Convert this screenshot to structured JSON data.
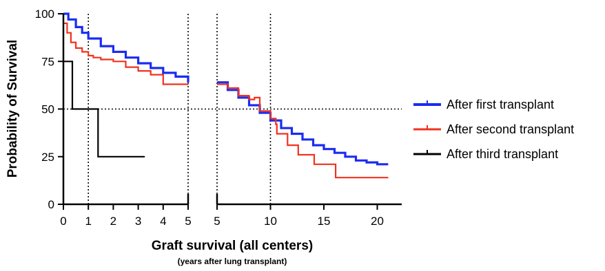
{
  "chart_data": {
    "type": "line",
    "chart_kind": "kaplan-meier step survival curves, split x-axis",
    "ylabel": "Probability of Survival",
    "xlabel": "Graft survival (all centers)",
    "xlabel_sub": "(years after lung transplant)",
    "ylim": [
      0,
      100
    ],
    "y_ticks": [
      0,
      25,
      50,
      75,
      100
    ],
    "x_segments": [
      {
        "xlim": [
          0,
          5
        ],
        "ticks": [
          0,
          1,
          2,
          3,
          4,
          5
        ]
      },
      {
        "xlim": [
          5,
          21
        ],
        "ticks": [
          5,
          10,
          15,
          20
        ]
      }
    ],
    "grid": false,
    "reference_lines": {
      "horizontal_y": [
        50
      ],
      "vertical_x": [
        1,
        5,
        10
      ]
    },
    "legend_position": "right",
    "series": [
      {
        "name": "After first transplant",
        "color": "#1a2cf0",
        "points": [
          [
            0,
            100
          ],
          [
            0.2,
            97
          ],
          [
            0.5,
            93
          ],
          [
            0.75,
            90
          ],
          [
            1,
            87
          ],
          [
            1.5,
            83
          ],
          [
            2,
            80
          ],
          [
            2.5,
            77
          ],
          [
            3,
            74
          ],
          [
            3.5,
            71.5
          ],
          [
            4,
            69
          ],
          [
            4.5,
            67
          ],
          [
            5,
            64
          ],
          [
            6,
            60
          ],
          [
            7,
            56
          ],
          [
            8,
            52
          ],
          [
            9,
            48
          ],
          [
            10,
            44
          ],
          [
            11,
            40
          ],
          [
            12,
            37
          ],
          [
            13,
            34
          ],
          [
            14,
            31
          ],
          [
            15,
            29
          ],
          [
            16,
            27
          ],
          [
            17,
            25
          ],
          [
            18,
            23
          ],
          [
            19,
            22
          ],
          [
            20,
            21
          ],
          [
            21,
            21
          ]
        ]
      },
      {
        "name": "After second transplant",
        "color": "#f0321e",
        "points": [
          [
            0,
            95
          ],
          [
            0.15,
            90
          ],
          [
            0.3,
            85
          ],
          [
            0.5,
            82
          ],
          [
            0.75,
            80
          ],
          [
            1,
            78
          ],
          [
            1.2,
            77
          ],
          [
            1.5,
            76
          ],
          [
            2,
            75
          ],
          [
            2.5,
            72
          ],
          [
            3,
            70
          ],
          [
            3.5,
            68
          ],
          [
            4,
            63
          ],
          [
            5,
            63
          ],
          [
            6,
            61
          ],
          [
            7,
            57
          ],
          [
            8,
            55
          ],
          [
            8.5,
            56
          ],
          [
            9,
            49
          ],
          [
            10,
            45
          ],
          [
            10.5,
            42
          ],
          [
            10.6,
            37
          ],
          [
            11.5,
            37
          ],
          [
            11.6,
            31
          ],
          [
            12.5,
            31
          ],
          [
            12.6,
            26
          ],
          [
            14,
            26
          ],
          [
            14.1,
            21
          ],
          [
            16,
            21
          ],
          [
            16.1,
            14
          ],
          [
            21,
            14
          ]
        ]
      },
      {
        "name": "After third transplant",
        "color": "#000000",
        "points": [
          [
            0,
            75
          ],
          [
            0.35,
            75
          ],
          [
            0.36,
            50
          ],
          [
            1.38,
            50
          ],
          [
            1.39,
            25
          ],
          [
            3.25,
            25
          ]
        ]
      }
    ]
  }
}
